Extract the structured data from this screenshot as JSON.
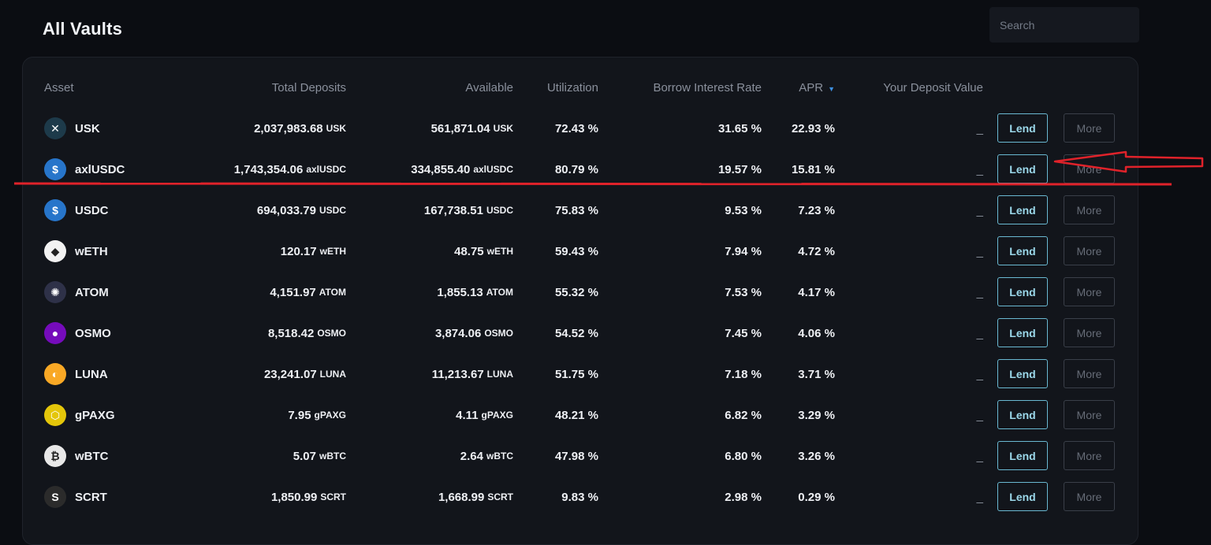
{
  "page": {
    "title": "All Vaults"
  },
  "search": {
    "placeholder": "Search"
  },
  "columns": {
    "asset": "Asset",
    "total_deposits": "Total Deposits",
    "available": "Available",
    "utilization": "Utilization",
    "borrow_rate": "Borrow Interest Rate",
    "apr": "APR",
    "deposit_value": "Your Deposit Value"
  },
  "buttons": {
    "lend": "Lend",
    "more": "More"
  },
  "colors": {
    "accent": "#6ab9d2",
    "annotation_red": "#e0222a",
    "sort_arrow": "#3d8fe0"
  },
  "rows": [
    {
      "asset": "USK",
      "icon": "usk-icon",
      "icon_color": "#1d3a4a",
      "icon_glyph": "✕",
      "deposits": "2,037,983.68",
      "deposits_unit": "USK",
      "available": "561,871.04",
      "available_unit": "USK",
      "utilization": "72.43 %",
      "borrow_rate": "31.65 %",
      "apr": "22.93 %",
      "deposit_value": "_"
    },
    {
      "asset": "axlUSDC",
      "icon": "axlusdc-icon",
      "icon_color": "#2775ca",
      "icon_glyph": "$",
      "deposits": "1,743,354.06",
      "deposits_unit": "axlUSDC",
      "available": "334,855.40",
      "available_unit": "axlUSDC",
      "utilization": "80.79 %",
      "borrow_rate": "19.57 %",
      "apr": "15.81 %",
      "deposit_value": "_"
    },
    {
      "asset": "USDC",
      "icon": "usdc-icon",
      "icon_color": "#2775ca",
      "icon_glyph": "$",
      "deposits": "694,033.79",
      "deposits_unit": "USDC",
      "available": "167,738.51",
      "available_unit": "USDC",
      "utilization": "75.83 %",
      "borrow_rate": "9.53 %",
      "apr": "7.23 %",
      "deposit_value": "_"
    },
    {
      "asset": "wETH",
      "icon": "weth-icon",
      "icon_color": "#f2f2f2",
      "icon_glyph": "◆",
      "deposits": "120.17",
      "deposits_unit": "wETH",
      "available": "48.75",
      "available_unit": "wETH",
      "utilization": "59.43 %",
      "borrow_rate": "7.94 %",
      "apr": "4.72 %",
      "deposit_value": "_"
    },
    {
      "asset": "ATOM",
      "icon": "atom-icon",
      "icon_color": "#2e3148",
      "icon_glyph": "✺",
      "deposits": "4,151.97",
      "deposits_unit": "ATOM",
      "available": "1,855.13",
      "available_unit": "ATOM",
      "utilization": "55.32 %",
      "borrow_rate": "7.53 %",
      "apr": "4.17 %",
      "deposit_value": "_"
    },
    {
      "asset": "OSMO",
      "icon": "osmo-icon",
      "icon_color": "#750bbb",
      "icon_glyph": "●",
      "deposits": "8,518.42",
      "deposits_unit": "OSMO",
      "available": "3,874.06",
      "available_unit": "OSMO",
      "utilization": "54.52 %",
      "borrow_rate": "7.45 %",
      "apr": "4.06 %",
      "deposit_value": "_"
    },
    {
      "asset": "LUNA",
      "icon": "luna-icon",
      "icon_color": "#f9a825",
      "icon_glyph": "◐",
      "deposits": "23,241.07",
      "deposits_unit": "LUNA",
      "available": "11,213.67",
      "available_unit": "LUNA",
      "utilization": "51.75 %",
      "borrow_rate": "7.18 %",
      "apr": "3.71 %",
      "deposit_value": "_"
    },
    {
      "asset": "gPAXG",
      "icon": "gpaxg-icon",
      "icon_color": "#e4c60a",
      "icon_glyph": "⬡",
      "deposits": "7.95",
      "deposits_unit": "gPAXG",
      "available": "4.11",
      "available_unit": "gPAXG",
      "utilization": "48.21 %",
      "borrow_rate": "6.82 %",
      "apr": "3.29 %",
      "deposit_value": "_"
    },
    {
      "asset": "wBTC",
      "icon": "wbtc-icon",
      "icon_color": "#e8e8e8",
      "icon_glyph": "₿",
      "deposits": "5.07",
      "deposits_unit": "wBTC",
      "available": "2.64",
      "available_unit": "wBTC",
      "utilization": "47.98 %",
      "borrow_rate": "6.80 %",
      "apr": "3.26 %",
      "deposit_value": "_"
    },
    {
      "asset": "SCRT",
      "icon": "scrt-icon",
      "icon_color": "#2b2b2b",
      "icon_glyph": "S",
      "deposits": "1,850.99",
      "deposits_unit": "SCRT",
      "available": "1,668.99",
      "available_unit": "SCRT",
      "utilization": "9.83 %",
      "borrow_rate": "2.98 %",
      "apr": "0.29 %",
      "deposit_value": "_"
    }
  ]
}
